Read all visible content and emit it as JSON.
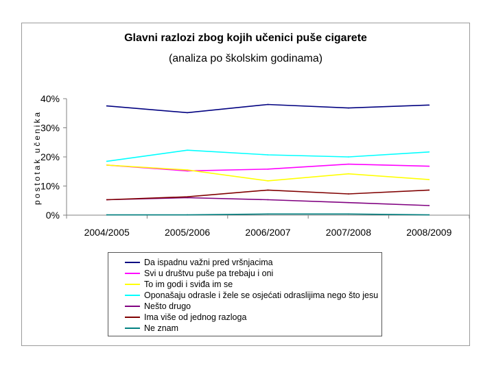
{
  "chart_data": {
    "type": "line",
    "title": "Glavni razlozi zbog kojih učenici puše cigarete",
    "subtitle": "(analiza po školskim godinama)",
    "ylabel": "postotak učenika",
    "xlabel": "",
    "categories": [
      "2004/2005",
      "2005/2006",
      "2006/2007",
      "2007/2008",
      "2008/2009"
    ],
    "ylim": [
      0,
      40
    ],
    "yticks": [
      "0%",
      "10%",
      "20%",
      "30%",
      "40%"
    ],
    "ytick_values": [
      0,
      10,
      20,
      30,
      40
    ],
    "grid": false,
    "legend_position": "bottom",
    "series": [
      {
        "name": "Da ispadnu važni pred vršnjacima",
        "color": "#000080",
        "values": [
          37.5,
          35.2,
          38.0,
          36.8,
          37.8
        ]
      },
      {
        "name": "Svi u društvu puše pa trebaju i oni",
        "color": "#FF00FF",
        "values": [
          17.2,
          15.2,
          15.8,
          17.5,
          16.8
        ]
      },
      {
        "name": "To im godi i sviđa im se",
        "color": "#FFFF00",
        "values": [
          17.2,
          15.5,
          11.8,
          14.2,
          12.2
        ]
      },
      {
        "name": "Oponašaju odrasle i žele se osjećati odraslijima nego što jesu",
        "color": "#00FFFF",
        "values": [
          18.5,
          22.3,
          20.7,
          20.0,
          21.7
        ]
      },
      {
        "name": "Nešto drugo",
        "color": "#800080",
        "values": [
          5.3,
          6.0,
          5.3,
          4.3,
          3.3
        ]
      },
      {
        "name": "Ima više od jednog razloga",
        "color": "#800000",
        "values": [
          5.3,
          6.3,
          8.6,
          7.3,
          8.6
        ]
      },
      {
        "name": "Ne znam",
        "color": "#008080",
        "values": [
          0.1,
          0.1,
          0.4,
          0.4,
          0.1
        ]
      }
    ]
  }
}
